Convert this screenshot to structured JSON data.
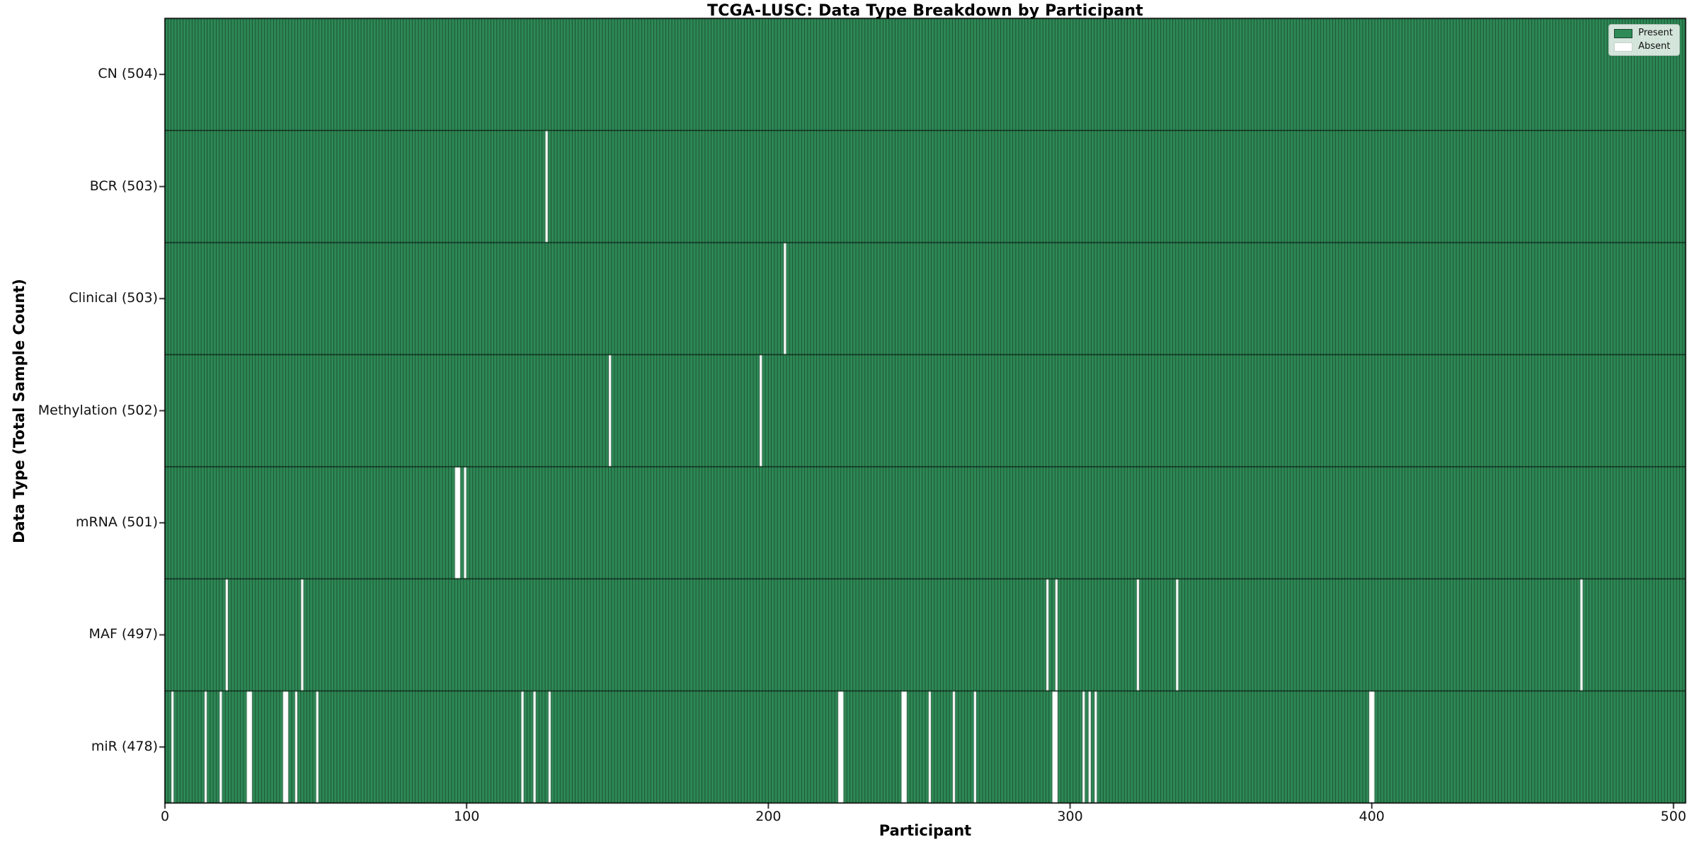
{
  "title": "TCGA-LUSC: Data Type Breakdown by Participant",
  "legend": {
    "present_label": "Present",
    "absent_label": "Absent",
    "position": "upper-right"
  },
  "chart_data": {
    "type": "heatmap",
    "title": "TCGA-LUSC: Data Type Breakdown by Participant",
    "xlabel": "Participant",
    "ylabel": "Data Type (Total Sample Count)",
    "n_participants": 504,
    "xlim": [
      0,
      504
    ],
    "x_ticks": [
      0,
      100,
      200,
      300,
      400,
      500
    ],
    "grid": false,
    "legend_entries": [
      {
        "label": "Present",
        "color": "#2e8b57"
      },
      {
        "label": "Absent",
        "color": "#ffffff"
      }
    ],
    "colors": {
      "present": "#2e8b57",
      "absent": "#ffffff",
      "bar_edge": "#14301f",
      "row_divider": "#0c1a12",
      "spine": "#000000"
    },
    "rows": [
      {
        "name": "CN",
        "label": "CN (504)",
        "total": 504,
        "absent": []
      },
      {
        "name": "BCR",
        "label": "BCR (503)",
        "total": 503,
        "absent": [
          126
        ]
      },
      {
        "name": "Clinical",
        "label": "Clinical (503)",
        "total": 503,
        "absent": [
          205
        ]
      },
      {
        "name": "Methylation",
        "label": "Methylation (502)",
        "total": 502,
        "absent": [
          147,
          197
        ]
      },
      {
        "name": "mRNA",
        "label": "mRNA (501)",
        "total": 501,
        "absent": [
          96,
          97,
          99
        ]
      },
      {
        "name": "MAF",
        "label": "MAF (497)",
        "total": 497,
        "absent": [
          20,
          45,
          292,
          295,
          322,
          335,
          469
        ]
      },
      {
        "name": "miR",
        "label": "miR (478)",
        "total": 478,
        "absent": [
          2,
          13,
          18,
          27,
          28,
          39,
          40,
          43,
          50,
          118,
          122,
          127,
          223,
          224,
          244,
          245,
          253,
          261,
          268,
          294,
          295,
          304,
          306,
          308,
          399,
          400
        ]
      }
    ]
  }
}
